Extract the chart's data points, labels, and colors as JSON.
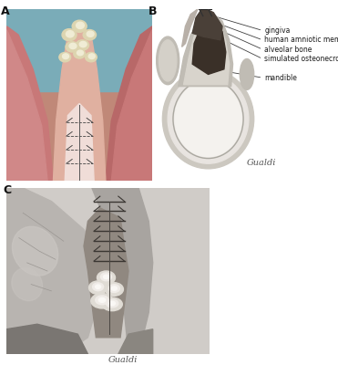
{
  "figure_width": 3.71,
  "figure_height": 4.0,
  "dpi": 100,
  "bg_color": "#ffffff",
  "panel_labels": [
    "A",
    "B",
    "C"
  ],
  "panel_label_fontsize": 9,
  "panel_label_fontweight": "bold",
  "annotations_B": [
    {
      "text": "gingiva",
      "xt": 0.62,
      "yt": 0.875,
      "fontsize": 5.5
    },
    {
      "text": "human amniotic membrane",
      "xt": 0.62,
      "yt": 0.82,
      "fontsize": 5.5
    },
    {
      "text": "alveolar bone",
      "xt": 0.62,
      "yt": 0.765,
      "fontsize": 5.5
    },
    {
      "text": "simulated osteonecrosis site",
      "xt": 0.62,
      "yt": 0.71,
      "fontsize": 5.5
    },
    {
      "text": "mandible",
      "xt": 0.62,
      "yt": 0.6,
      "fontsize": 5.5
    }
  ]
}
